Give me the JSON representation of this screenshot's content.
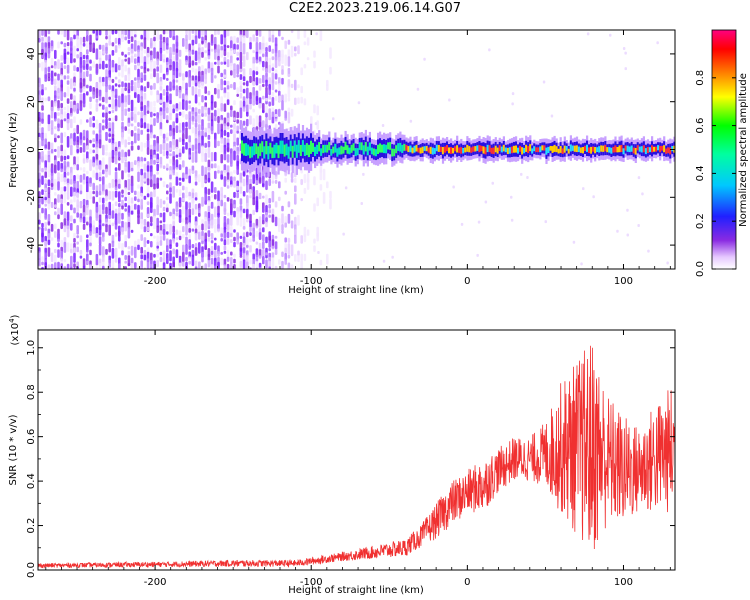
{
  "title": "C2E2.2023.219.06.14.G07",
  "chart_data": [
    {
      "type": "heatmap",
      "name": "spectrogram",
      "xlabel": "Height of straight line (km)",
      "ylabel": "Frequency (Hz)",
      "xlim": [
        -275,
        133
      ],
      "ylim": [
        -50,
        50
      ],
      "xticks": [
        -200,
        -100,
        0,
        100
      ],
      "xtick_labels": [
        "-200",
        "-100",
        "0",
        "100"
      ],
      "yticks": [
        -40,
        -20,
        0,
        20,
        40
      ],
      "ytick_labels": [
        "-40",
        "-20",
        "0",
        "20",
        "40"
      ],
      "colorbar": {
        "label": "Normalized spectral amplitude",
        "range": [
          0,
          1
        ],
        "ticks": [
          0.0,
          0.2,
          0.4,
          0.6,
          0.8
        ],
        "tick_labels": [
          "0.0",
          "0.2",
          "0.4",
          "0.6",
          "0.8"
        ]
      },
      "features": {
        "noise_region_x": [
          -275,
          -100
        ],
        "signal_start_x": -145,
        "signal_center_freq": 0
      }
    },
    {
      "type": "line",
      "name": "snr",
      "xlabel": "Height of straight line (km)",
      "ylabel": "SNR (10 * v/v)",
      "multiplier_label": "(x10",
      "multiplier_exp": "4",
      "multiplier_close": ")",
      "color": "#f03030",
      "xlim": [
        -275,
        133
      ],
      "ylim": [
        0,
        1.08
      ],
      "xticks": [
        -200,
        -100,
        0,
        100
      ],
      "xtick_labels": [
        "-200",
        "-100",
        "0",
        "100"
      ],
      "yticks": [
        0.0,
        0.2,
        0.4,
        0.6,
        0.8,
        1.0
      ],
      "ytick_labels": [
        "0.0",
        "0.2",
        "0.4",
        "0.6",
        "0.8",
        "1.0"
      ],
      "envelope": {
        "x": [
          -275,
          -200,
          -150,
          -110,
          -80,
          -60,
          -40,
          -30,
          -20,
          -10,
          0,
          10,
          20,
          30,
          40,
          50,
          60,
          70,
          80,
          90,
          100,
          110,
          120,
          133
        ],
        "mean": [
          0.02,
          0.025,
          0.03,
          0.03,
          0.06,
          0.08,
          0.1,
          0.15,
          0.22,
          0.3,
          0.35,
          0.38,
          0.45,
          0.5,
          0.5,
          0.52,
          0.55,
          0.55,
          0.55,
          0.5,
          0.45,
          0.45,
          0.5,
          0.55
        ],
        "amplitude": [
          0.01,
          0.012,
          0.015,
          0.015,
          0.02,
          0.03,
          0.04,
          0.05,
          0.08,
          0.1,
          0.1,
          0.12,
          0.1,
          0.1,
          0.1,
          0.15,
          0.3,
          0.4,
          0.5,
          0.3,
          0.25,
          0.2,
          0.25,
          0.3
        ]
      }
    }
  ]
}
